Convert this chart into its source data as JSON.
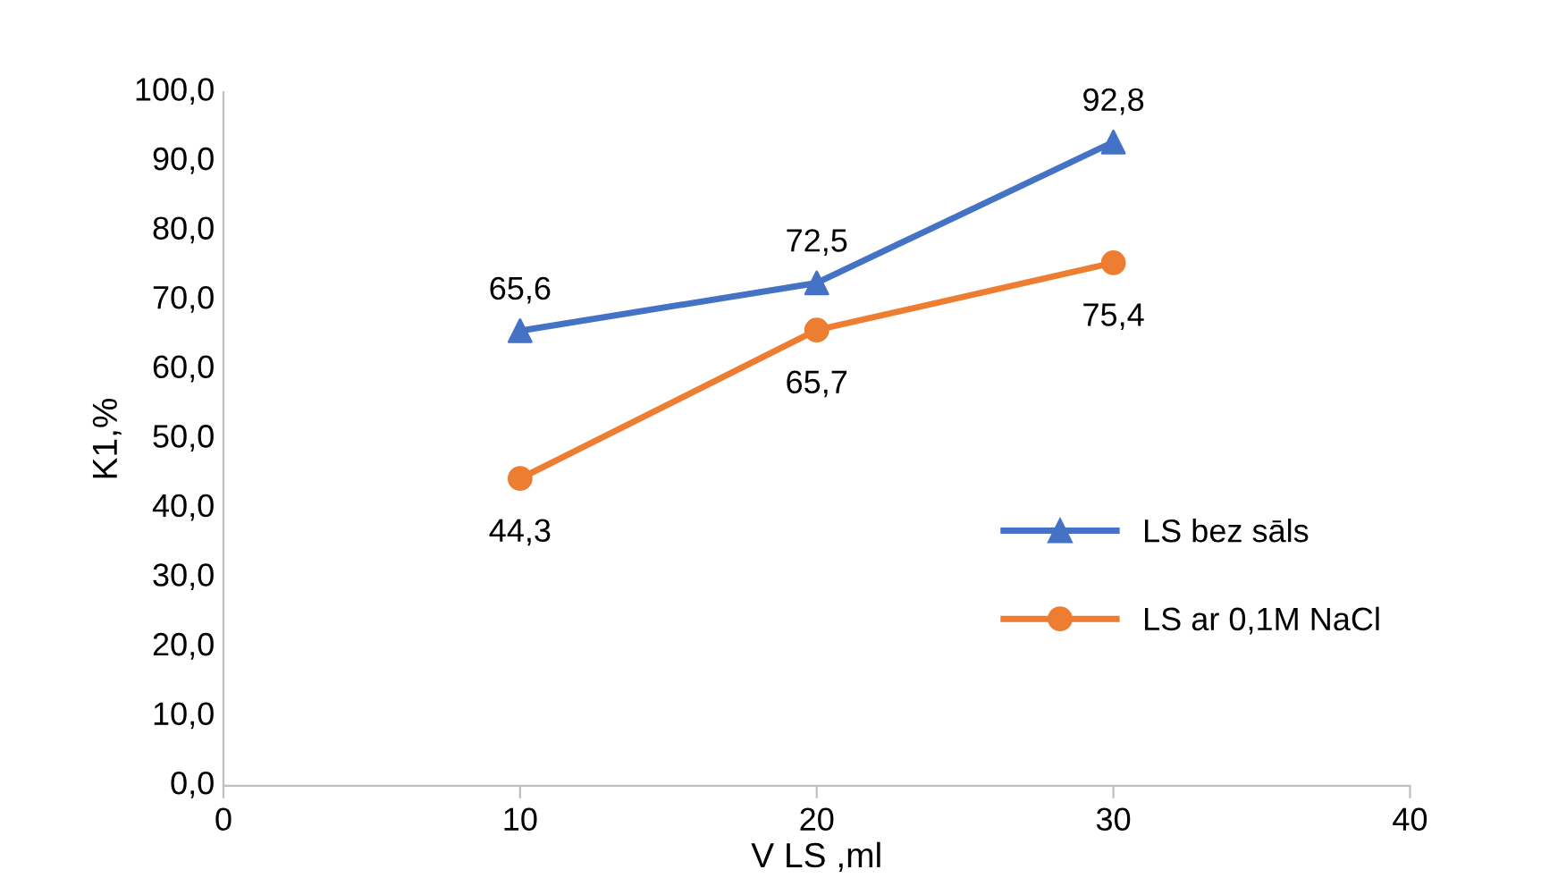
{
  "chart_data": {
    "type": "line",
    "xlabel": "V LS ,ml",
    "ylabel": "K1,%",
    "x": [
      10,
      20,
      30
    ],
    "series": [
      {
        "name": "LS bez sāls",
        "color": "#4472c4",
        "marker": "triangle",
        "values": [
          65.6,
          72.5,
          92.8
        ],
        "value_labels": [
          "65,6",
          "72,5",
          "92,8"
        ]
      },
      {
        "name": "LS ar 0,1M NaCl",
        "color": "#ed7d31",
        "marker": "circle",
        "values": [
          44.3,
          65.7,
          75.4
        ],
        "value_labels": [
          "44,3",
          "65,7",
          "75,4"
        ]
      }
    ],
    "xlim": [
      0,
      40
    ],
    "xticks": [
      0,
      10,
      20,
      30,
      40
    ],
    "ylim": [
      0,
      100
    ],
    "yticks": [
      {
        "value": 0,
        "label": "0,0"
      },
      {
        "value": 10,
        "label": "10,0"
      },
      {
        "value": 20,
        "label": "20,0"
      },
      {
        "value": 30,
        "label": "30,0"
      },
      {
        "value": 40,
        "label": "40,0"
      },
      {
        "value": 50,
        "label": "50,0"
      },
      {
        "value": 60,
        "label": "60,0"
      },
      {
        "value": 70,
        "label": "70,0"
      },
      {
        "value": 80,
        "label": "80,0"
      },
      {
        "value": 90,
        "label": "90,0"
      },
      {
        "value": 100,
        "label": "100,0"
      }
    ],
    "grid": false,
    "legend": "center right",
    "line_style": "solid"
  }
}
